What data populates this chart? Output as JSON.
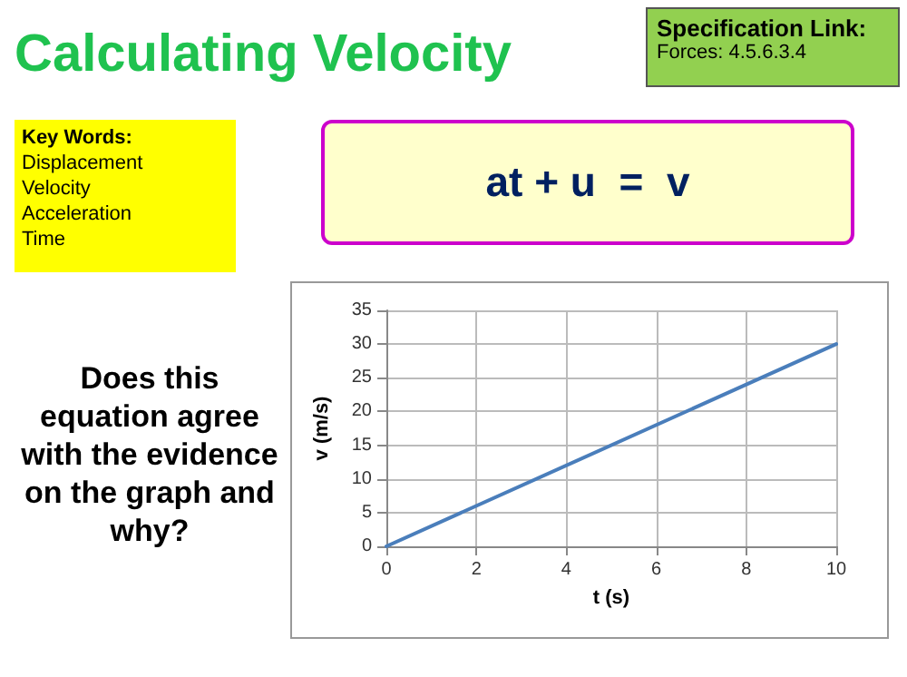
{
  "chart_data": {
    "type": "line",
    "title": "Calculating Velocity",
    "annotations": [
      "Specification Link:",
      "Forces: 4.5.6.3.4",
      "Key Words:",
      "Displacement",
      "Velocity",
      "Acceleration",
      "Time",
      "at + u  =  v",
      "Does this equation agree with the evidence on the graph and why?"
    ],
    "x": [
      0,
      10
    ],
    "series": [
      {
        "color": "#4a7ebb",
        "values": [
          0,
          30
        ]
      }
    ],
    "xlabel": "t (s)",
    "ylabel": "v (m/s)",
    "xlim": [
      0,
      10
    ],
    "xticks": [
      0,
      2,
      4,
      6,
      8,
      10
    ],
    "ylim": [
      0,
      35
    ],
    "yticks": [
      0,
      5,
      10,
      15,
      20,
      25,
      30,
      35
    ],
    "grid": true,
    "marker": "none",
    "line_style": "solid"
  }
}
